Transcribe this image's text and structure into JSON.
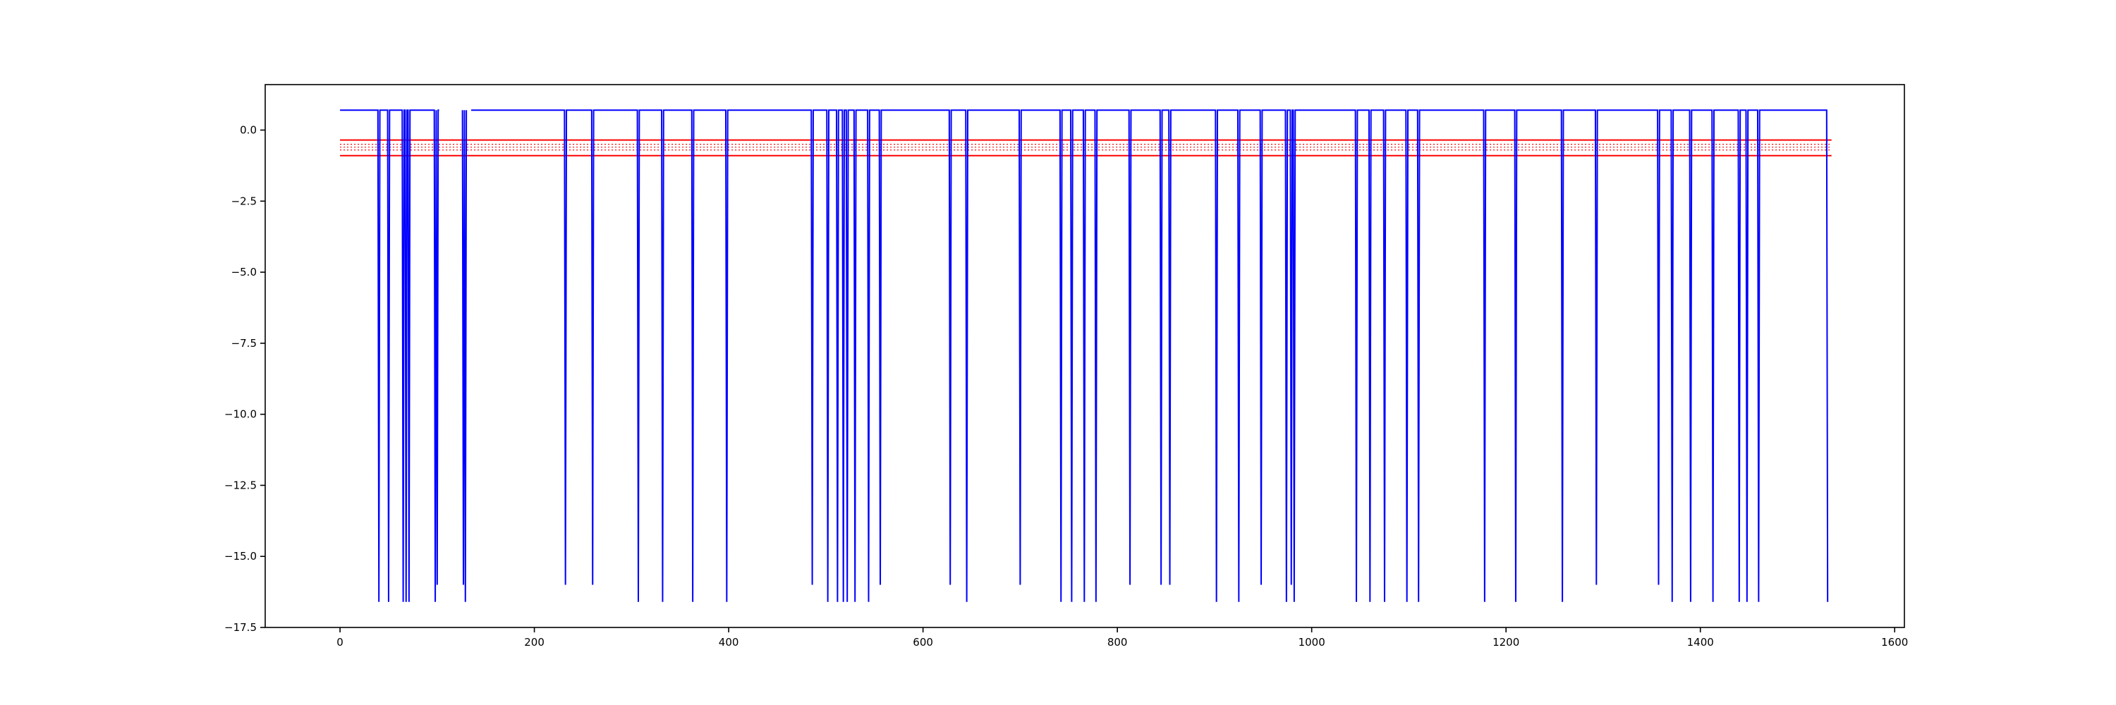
{
  "chart_data": {
    "type": "line",
    "title": "",
    "xlabel": "",
    "ylabel": "",
    "xlim": [
      -77,
      1610
    ],
    "ylim": [
      -17.5,
      1.6
    ],
    "xticks": [
      0,
      200,
      400,
      600,
      800,
      1000,
      1200,
      1400,
      1600
    ],
    "xtick_labels": [
      "0",
      "200",
      "400",
      "600",
      "800",
      "1000",
      "1200",
      "1400",
      "1600"
    ],
    "yticks": [
      0.0,
      -2.5,
      -5.0,
      -7.5,
      -10.0,
      -12.5,
      -15.0,
      -17.5
    ],
    "ytick_labels": [
      "0.0",
      "−2.5",
      "−5.0",
      "−7.5",
      "−10.0",
      "−12.5",
      "−15.0",
      "−17.5"
    ],
    "grid": false,
    "series": [
      {
        "color": "#0000ff",
        "baseline": 0.7,
        "length": 1532,
        "drops": [
          [
            40,
            -16.6
          ],
          [
            50,
            -16.6
          ],
          [
            65,
            -16.6
          ],
          [
            68,
            -16.6
          ],
          [
            71,
            -16.6
          ],
          [
            98,
            -16.6
          ],
          [
            100,
            -16.0
          ],
          [
            127,
            -16.0
          ],
          [
            129,
            -16.6
          ],
          [
            232,
            -16.0
          ],
          [
            260,
            -16.0
          ],
          [
            307,
            -16.6
          ],
          [
            332,
            -16.6
          ],
          [
            363,
            -16.6
          ],
          [
            398,
            -16.6
          ],
          [
            486,
            -16.0
          ],
          [
            502,
            -16.6
          ],
          [
            512,
            -16.6
          ],
          [
            518,
            -16.6
          ],
          [
            522,
            -16.6
          ],
          [
            530,
            -16.6
          ],
          [
            544,
            -16.6
          ],
          [
            556,
            -16.0
          ],
          [
            628,
            -16.0
          ],
          [
            645,
            -16.6
          ],
          [
            700,
            -16.0
          ],
          [
            742,
            -16.6
          ],
          [
            753,
            -16.6
          ],
          [
            766,
            -16.6
          ],
          [
            778,
            -16.6
          ],
          [
            813,
            -16.0
          ],
          [
            845,
            -16.0
          ],
          [
            854,
            -16.0
          ],
          [
            902,
            -16.6
          ],
          [
            925,
            -16.6
          ],
          [
            948,
            -16.0
          ],
          [
            974,
            -16.6
          ],
          [
            979,
            -16.0
          ],
          [
            982,
            -16.6
          ],
          [
            1046,
            -16.6
          ],
          [
            1060,
            -16.6
          ],
          [
            1075,
            -16.6
          ],
          [
            1098,
            -16.6
          ],
          [
            1110,
            -16.6
          ],
          [
            1178,
            -16.6
          ],
          [
            1210,
            -16.6
          ],
          [
            1258,
            -16.6
          ],
          [
            1293,
            -16.0
          ],
          [
            1357,
            -16.0
          ],
          [
            1371,
            -16.6
          ],
          [
            1390,
            -16.6
          ],
          [
            1413,
            -16.6
          ],
          [
            1440,
            -16.6
          ],
          [
            1448,
            -16.6
          ],
          [
            1460,
            -16.6
          ],
          [
            1531,
            -16.6
          ]
        ],
        "gaps": [
          [
            103,
            125
          ],
          [
            131,
            134
          ]
        ]
      },
      {
        "color": "#ff0000",
        "style": "solid",
        "y": -0.35,
        "x": [
          0,
          1535
        ]
      },
      {
        "color": "#ff0000",
        "style": "dotted",
        "y": -0.5,
        "x": [
          0,
          1535
        ]
      },
      {
        "color": "#ff0000",
        "style": "dotted",
        "y": -0.6,
        "x": [
          0,
          1535
        ]
      },
      {
        "color": "#ff0000",
        "style": "dotted",
        "y": -0.7,
        "x": [
          0,
          1535
        ]
      },
      {
        "color": "#ff0000",
        "style": "solid",
        "y": -0.9,
        "x": [
          0,
          1535
        ]
      }
    ]
  }
}
